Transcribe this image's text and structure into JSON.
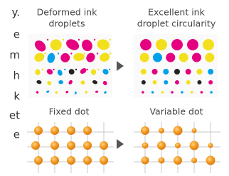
{
  "left_text": {
    "lines": [
      "y.",
      "e",
      "m",
      "h",
      "k",
      "et",
      "e"
    ]
  },
  "panels": {
    "top": {
      "before": {
        "label_lines": [
          "Deformed ink",
          "droplets"
        ]
      },
      "after": {
        "label_lines": [
          "Excellent ink",
          "droplet circularity"
        ]
      }
    },
    "bottom": {
      "before": {
        "label": "Fixed dot"
      },
      "after": {
        "label": "Variable dot"
      }
    }
  }
}
